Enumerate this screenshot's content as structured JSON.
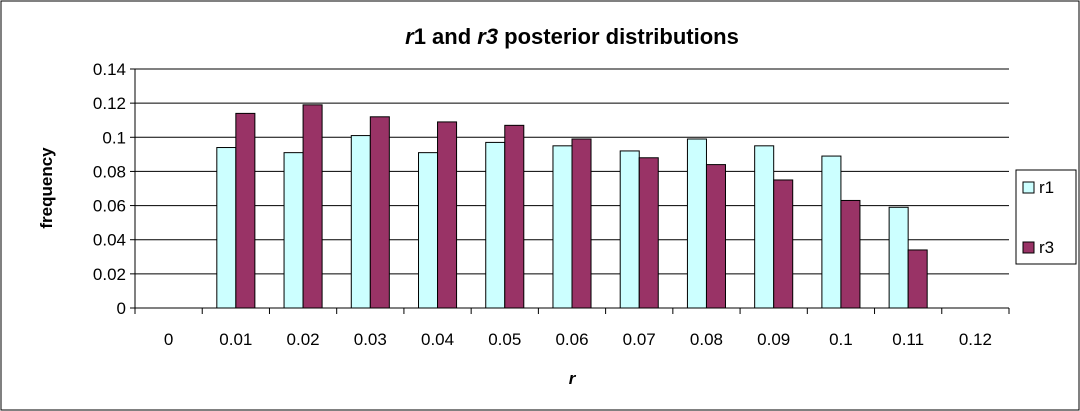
{
  "chart_data": {
    "type": "bar",
    "title_parts": [
      {
        "text": "r",
        "italic": true
      },
      {
        "text": "1 and ",
        "italic": false
      },
      {
        "text": "r3",
        "italic": true
      },
      {
        "text": " posterior distributions",
        "italic": false
      }
    ],
    "xlabel": "r",
    "ylabel": "frequency",
    "categories": [
      "0",
      "0.01",
      "0.02",
      "0.03",
      "0.04",
      "0.05",
      "0.06",
      "0.07",
      "0.08",
      "0.09",
      "0.1",
      "0.11",
      "0.12"
    ],
    "series": [
      {
        "name": "r1",
        "color": "#CCFFFF",
        "values": [
          0,
          0.094,
          0.091,
          0.101,
          0.091,
          0.097,
          0.095,
          0.092,
          0.099,
          0.095,
          0.089,
          0.059,
          0
        ]
      },
      {
        "name": "r3",
        "color": "#993366",
        "values": [
          0,
          0.114,
          0.119,
          0.112,
          0.109,
          0.107,
          0.099,
          0.088,
          0.084,
          0.075,
          0.063,
          0.034,
          0
        ]
      }
    ],
    "yticks": [
      "0",
      "0.02",
      "0.04",
      "0.06",
      "0.08",
      "0.1",
      "0.12",
      "0.14"
    ],
    "ylim": [
      0,
      0.14
    ],
    "grid": "horizontal",
    "legend": "right"
  }
}
